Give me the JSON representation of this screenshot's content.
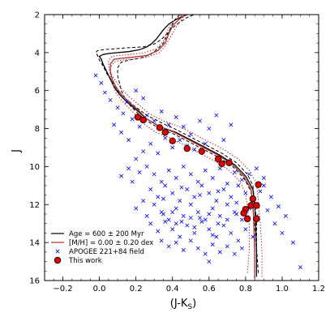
{
  "chart_data": {
    "type": "scatter",
    "xlabel_main": "(J-K",
    "xlabel_sub": "S",
    "xlabel_end": ")",
    "ylabel": "J",
    "xlim": [
      -0.3,
      1.2
    ],
    "ylim": [
      16,
      2
    ],
    "xticks": [
      -0.2,
      0.0,
      0.2,
      0.4,
      0.6,
      0.8,
      1.0,
      1.2
    ],
    "xtick_labels": [
      "−0.2",
      "0.0",
      "0.2",
      "0.4",
      "0.6",
      "0.8",
      "1.0",
      "1.2"
    ],
    "yticks": [
      2,
      4,
      6,
      8,
      10,
      12,
      14,
      16
    ],
    "ytick_labels": [
      "2",
      "4",
      "6",
      "8",
      "10",
      "12",
      "14",
      "16"
    ],
    "legend_position": "bottom-left",
    "series": [
      {
        "name": "Age = 600 ± 200 Myr",
        "kind": "isochrone-black",
        "color": "#000000",
        "curves": [
          {
            "style": "solid",
            "x": [
              0.86,
              0.86,
              0.855,
              0.85,
              0.84,
              0.8,
              0.74,
              0.66,
              0.58,
              0.5,
              0.42,
              0.33,
              0.26,
              0.2,
              0.15,
              0.11,
              0.08,
              0.06,
              0.04,
              0.02,
              0.01,
              0.0,
              0.02,
              0.05,
              0.1,
              0.16,
              0.22,
              0.26,
              0.29,
              0.31,
              0.33,
              0.35,
              0.38,
              0.42,
              0.48
            ],
            "y": [
              15.8,
              14.5,
              13.0,
              12.0,
              11.2,
              10.5,
              9.9,
              9.4,
              9.0,
              8.6,
              8.2,
              7.9,
              7.5,
              7.0,
              6.6,
              6.2,
              5.8,
              5.4,
              5.0,
              4.6,
              4.35,
              4.2,
              4.1,
              4.05,
              4.0,
              3.95,
              3.85,
              3.7,
              3.5,
              3.3,
              3.05,
              2.8,
              2.5,
              2.25,
              2.0
            ]
          },
          {
            "style": "dashed",
            "x": [
              0.87,
              0.86,
              0.86,
              0.85,
              0.84,
              0.81,
              0.75,
              0.67,
              0.59,
              0.51,
              0.43,
              0.34,
              0.26,
              0.19,
              0.14,
              0.1,
              0.07,
              0.04,
              0.02,
              0.0,
              -0.01,
              -0.02,
              -0.01,
              0.02,
              0.08,
              0.15,
              0.24,
              0.3,
              0.34,
              0.37,
              0.4,
              0.44,
              0.48,
              0.52
            ],
            "y": [
              15.6,
              14.3,
              12.9,
              11.9,
              11.0,
              10.4,
              9.8,
              9.3,
              8.9,
              8.5,
              8.1,
              7.7,
              7.3,
              6.8,
              6.4,
              6.0,
              5.5,
              5.1,
              4.7,
              4.4,
              4.15,
              4.0,
              3.9,
              3.85,
              3.8,
              3.75,
              3.7,
              3.55,
              3.3,
              3.0,
              2.7,
              2.4,
              2.15,
              2.0
            ]
          },
          {
            "style": "dashed",
            "x": [
              0.85,
              0.85,
              0.85,
              0.84,
              0.83,
              0.79,
              0.73,
              0.65,
              0.57,
              0.49,
              0.41,
              0.33,
              0.26,
              0.21,
              0.17,
              0.14,
              0.12,
              0.11,
              0.1,
              0.1,
              0.12,
              0.16,
              0.22,
              0.28,
              0.32,
              0.35,
              0.37,
              0.39,
              0.41,
              0.44
            ],
            "y": [
              15.9,
              14.6,
              13.1,
              12.1,
              11.3,
              10.6,
              10.0,
              9.5,
              9.1,
              8.7,
              8.3,
              8.0,
              7.6,
              7.2,
              6.8,
              6.4,
              6.0,
              5.6,
              5.2,
              4.8,
              4.5,
              4.4,
              4.3,
              4.1,
              3.8,
              3.5,
              3.1,
              2.7,
              2.3,
              2.0
            ]
          }
        ]
      },
      {
        "name": "[M/H] = 0.00 ± 0.20 dex",
        "kind": "isochrone-red",
        "color": "#b03030",
        "curves": [
          {
            "style": "solid",
            "x": [
              0.85,
              0.85,
              0.845,
              0.84,
              0.83,
              0.79,
              0.73,
              0.65,
              0.57,
              0.49,
              0.41,
              0.33,
              0.26,
              0.21,
              0.16,
              0.12,
              0.09,
              0.07,
              0.06,
              0.06,
              0.08,
              0.12,
              0.18,
              0.26,
              0.32,
              0.36,
              0.38,
              0.4,
              0.43,
              0.47
            ],
            "y": [
              15.8,
              14.5,
              13.0,
              12.0,
              11.2,
              10.5,
              9.9,
              9.4,
              9.0,
              8.6,
              8.2,
              7.9,
              7.5,
              7.0,
              6.6,
              6.2,
              5.8,
              5.4,
              5.0,
              4.6,
              4.35,
              4.3,
              4.25,
              4.15,
              3.9,
              3.5,
              3.0,
              2.6,
              2.3,
              2.0
            ]
          },
          {
            "style": "dotted",
            "x": [
              0.81,
              0.82,
              0.82,
              0.81,
              0.8,
              0.77,
              0.71,
              0.63,
              0.55,
              0.47,
              0.39,
              0.31,
              0.25,
              0.2,
              0.16,
              0.12,
              0.09,
              0.07,
              0.06,
              0.06,
              0.08,
              0.12,
              0.18,
              0.26,
              0.33,
              0.37,
              0.4,
              0.43,
              0.47
            ],
            "y": [
              15.6,
              14.4,
              13.0,
              12.1,
              11.4,
              10.8,
              10.2,
              9.7,
              9.3,
              8.9,
              8.5,
              8.2,
              7.8,
              7.3,
              6.9,
              6.5,
              6.1,
              5.6,
              5.2,
              4.8,
              4.5,
              4.4,
              4.35,
              4.25,
              4.0,
              3.5,
              3.0,
              2.5,
              2.0
            ]
          },
          {
            "style": "dotted",
            "x": [
              0.89,
              0.89,
              0.88,
              0.87,
              0.86,
              0.82,
              0.76,
              0.68,
              0.6,
              0.52,
              0.44,
              0.35,
              0.27,
              0.21,
              0.16,
              0.12,
              0.09,
              0.06,
              0.05,
              0.05,
              0.07,
              0.11,
              0.17,
              0.25,
              0.31,
              0.35,
              0.37,
              0.39,
              0.42,
              0.46
            ],
            "y": [
              15.8,
              14.5,
              12.9,
              11.8,
              10.9,
              10.2,
              9.6,
              9.1,
              8.7,
              8.3,
              7.9,
              7.6,
              7.2,
              6.7,
              6.3,
              5.9,
              5.5,
              5.1,
              4.7,
              4.4,
              4.2,
              4.15,
              4.1,
              4.0,
              3.8,
              3.4,
              2.9,
              2.5,
              2.2,
              2.0
            ]
          }
        ]
      },
      {
        "name": "APOGEE 221+84 field",
        "kind": "field-stars",
        "color": "#0000ff",
        "points": [
          [
            -0.02,
            5.2
          ],
          [
            0.01,
            5.6
          ],
          [
            0.03,
            6.1
          ],
          [
            0.06,
            6.5
          ],
          [
            0.1,
            6.9
          ],
          [
            0.13,
            7.2
          ],
          [
            0.08,
            7.8
          ],
          [
            0.15,
            6.6
          ],
          [
            0.2,
            6.0
          ],
          [
            0.24,
            6.4
          ],
          [
            0.18,
            7.5
          ],
          [
            0.22,
            7.9
          ],
          [
            0.12,
            8.2
          ],
          [
            0.16,
            8.6
          ],
          [
            0.26,
            7.3
          ],
          [
            0.3,
            7.6
          ],
          [
            0.34,
            7.1
          ],
          [
            0.38,
            7.8
          ],
          [
            0.42,
            7.4
          ],
          [
            0.46,
            7.9
          ],
          [
            0.5,
            8.3
          ],
          [
            0.55,
            7.6
          ],
          [
            0.6,
            8.0
          ],
          [
            0.64,
            7.3
          ],
          [
            0.68,
            8.6
          ],
          [
            0.72,
            7.8
          ],
          [
            0.58,
            8.8
          ],
          [
            0.52,
            9.1
          ],
          [
            0.48,
            8.9
          ],
          [
            0.44,
            8.6
          ],
          [
            0.4,
            9.0
          ],
          [
            0.36,
            8.5
          ],
          [
            0.32,
            9.3
          ],
          [
            0.28,
            8.8
          ],
          [
            0.24,
            9.2
          ],
          [
            0.2,
            9.6
          ],
          [
            0.16,
            10.1
          ],
          [
            0.12,
            10.5
          ],
          [
            0.18,
            10.8
          ],
          [
            0.22,
            10.3
          ],
          [
            0.26,
            10.0
          ],
          [
            0.3,
            10.4
          ],
          [
            0.34,
            10.8
          ],
          [
            0.38,
            10.2
          ],
          [
            0.42,
            10.6
          ],
          [
            0.46,
            10.0
          ],
          [
            0.5,
            10.4
          ],
          [
            0.54,
            10.8
          ],
          [
            0.58,
            10.2
          ],
          [
            0.62,
            10.6
          ],
          [
            0.66,
            10.1
          ],
          [
            0.7,
            10.9
          ],
          [
            0.74,
            10.3
          ],
          [
            0.78,
            10.7
          ],
          [
            0.82,
            10.4
          ],
          [
            0.86,
            10.1
          ],
          [
            0.9,
            10.6
          ],
          [
            0.28,
            11.2
          ],
          [
            0.32,
            11.6
          ],
          [
            0.36,
            11.0
          ],
          [
            0.4,
            11.4
          ],
          [
            0.44,
            11.8
          ],
          [
            0.48,
            11.2
          ],
          [
            0.52,
            11.6
          ],
          [
            0.56,
            11.0
          ],
          [
            0.6,
            11.4
          ],
          [
            0.64,
            11.8
          ],
          [
            0.68,
            11.2
          ],
          [
            0.72,
            11.6
          ],
          [
            0.76,
            11.0
          ],
          [
            0.8,
            11.4
          ],
          [
            0.84,
            11.8
          ],
          [
            0.88,
            11.3
          ],
          [
            0.24,
            11.8
          ],
          [
            0.2,
            12.2
          ],
          [
            0.26,
            12.6
          ],
          [
            0.3,
            12.0
          ],
          [
            0.34,
            12.4
          ],
          [
            0.38,
            12.8
          ],
          [
            0.42,
            12.2
          ],
          [
            0.46,
            12.6
          ],
          [
            0.5,
            12.0
          ],
          [
            0.54,
            12.4
          ],
          [
            0.58,
            12.8
          ],
          [
            0.62,
            12.2
          ],
          [
            0.66,
            12.6
          ],
          [
            0.7,
            12.0
          ],
          [
            0.74,
            12.4
          ],
          [
            0.78,
            12.8
          ],
          [
            0.82,
            12.2
          ],
          [
            0.86,
            12.6
          ],
          [
            0.92,
            12.3
          ],
          [
            0.28,
            13.0
          ],
          [
            0.32,
            13.4
          ],
          [
            0.36,
            12.9
          ],
          [
            0.4,
            13.3
          ],
          [
            0.44,
            13.7
          ],
          [
            0.48,
            13.1
          ],
          [
            0.52,
            13.5
          ],
          [
            0.56,
            12.9
          ],
          [
            0.6,
            13.3
          ],
          [
            0.64,
            13.7
          ],
          [
            0.68,
            13.1
          ],
          [
            0.72,
            13.5
          ],
          [
            0.76,
            13.9
          ],
          [
            0.8,
            13.3
          ],
          [
            0.84,
            13.7
          ],
          [
            0.34,
            13.9
          ],
          [
            0.38,
            14.2
          ],
          [
            0.42,
            14.0
          ],
          [
            0.46,
            14.4
          ],
          [
            0.5,
            13.9
          ],
          [
            0.54,
            14.3
          ],
          [
            0.58,
            14.6
          ],
          [
            0.62,
            14.1
          ],
          [
            0.66,
            14.5
          ],
          [
            0.7,
            14.2
          ],
          [
            0.74,
            14.6
          ],
          [
            0.78,
            14.3
          ],
          [
            0.6,
            15.0
          ],
          [
            0.9,
            11.0
          ],
          [
            0.94,
            11.6
          ],
          [
            0.98,
            12.1
          ],
          [
            1.02,
            12.6
          ],
          [
            0.96,
            13.0
          ],
          [
            1.0,
            13.5
          ],
          [
            1.06,
            14.0
          ],
          [
            1.1,
            15.3
          ],
          [
            0.35,
            12.5
          ],
          [
            0.45,
            12.9
          ],
          [
            0.55,
            12.7
          ],
          [
            0.65,
            13.0
          ],
          [
            0.75,
            12.5
          ],
          [
            0.55,
            11.5
          ],
          [
            0.45,
            11.1
          ],
          [
            0.35,
            11.7
          ],
          [
            0.65,
            11.3
          ],
          [
            0.75,
            11.9
          ],
          [
            0.4,
            12.4
          ],
          [
            0.5,
            12.7
          ],
          [
            0.6,
            12.5
          ],
          [
            0.7,
            12.8
          ],
          [
            0.52,
            13.2
          ],
          [
            0.62,
            13.6
          ],
          [
            0.42,
            13.0
          ]
        ]
      },
      {
        "name": "This work",
        "kind": "cluster-stars",
        "color": "#e00000",
        "points": [
          [
            0.21,
            7.4
          ],
          [
            0.24,
            7.55
          ],
          [
            0.33,
            7.95
          ],
          [
            0.36,
            8.2
          ],
          [
            0.4,
            8.65
          ],
          [
            0.48,
            9.05
          ],
          [
            0.56,
            9.2
          ],
          [
            0.65,
            9.6
          ],
          [
            0.67,
            9.85
          ],
          [
            0.71,
            9.8
          ],
          [
            0.87,
            10.95
          ],
          [
            0.84,
            11.7
          ],
          [
            0.83,
            12.05
          ],
          [
            0.86,
            12.05
          ],
          [
            0.8,
            12.25
          ],
          [
            0.79,
            12.45
          ],
          [
            0.81,
            12.75
          ],
          [
            0.86,
            12.75
          ]
        ]
      }
    ]
  }
}
